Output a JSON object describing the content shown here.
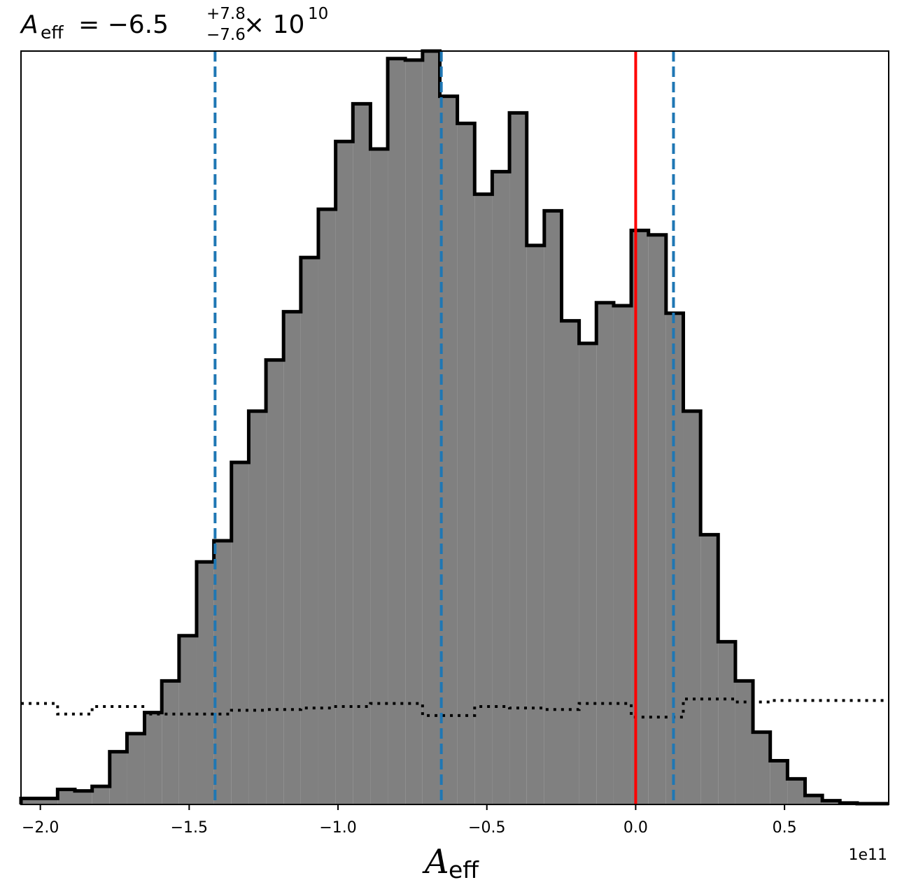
{
  "chart_data": {
    "type": "histogram",
    "title": {
      "symbol": "A",
      "symbol_subscript": "eff",
      "equals": "= −6.5",
      "upper_err": "+7.8",
      "lower_err": "−7.6",
      "times": "× 10",
      "exponent": "10"
    },
    "xlabel": {
      "symbol": "A",
      "subscript": "eff"
    },
    "x_offset_label": "1e11",
    "xlim": [
      -206500000000.0,
      85000000000.0
    ],
    "ylim": [
      0,
      1.0
    ],
    "xticks": [
      {
        "value": -200000000000.0,
        "label": "−2.0"
      },
      {
        "value": -150000000000.0,
        "label": "−1.5"
      },
      {
        "value": -100000000000.0,
        "label": "−1.0"
      },
      {
        "value": -50000000000.0,
        "label": "−0.5"
      },
      {
        "value": 0.0,
        "label": "0.0"
      },
      {
        "value": 50000000000.0,
        "label": "0.5"
      }
    ],
    "grid": false,
    "bin_edges": [
      -206500000000.0,
      -194200000000.0,
      -188400000000.0,
      -182600000000.0,
      -176700000000.0,
      -170900000000.0,
      -165000000000.0,
      -159200000000.0,
      -153400000000.0,
      -147500000000.0,
      -141700000000.0,
      -135800000000.0,
      -130000000000.0,
      -124200000000.0,
      -118300000000.0,
      -112500000000.0,
      -106600000000.0,
      -100800000000.0,
      -95000000000.0,
      -89100000000.0,
      -83300000000.0,
      -77400000000.0,
      -71600000000.0,
      -65800000000.0,
      -59900000000.0,
      -54100000000.0,
      -48200000000.0,
      -42400000000.0,
      -36600000000.0,
      -30700000000.0,
      -24900000000.0,
      -19000000000.0,
      -13200000000.0,
      -7400000000.0,
      -1500000000.0,
      4300000000.0,
      10200000000.0,
      16000000000.0,
      21800000000.0,
      27700000000.0,
      33500000000.0,
      39400000000.0,
      45200000000.0,
      51000000000.0,
      56900000000.0,
      62700000000.0,
      68600000000.0,
      74400000000.0,
      85000000000.0
    ],
    "series": [
      {
        "style": "filled-step",
        "color": "#808080",
        "edge_color": "#000000",
        "values": [
          0.008,
          0.02,
          0.018,
          0.024,
          0.07,
          0.094,
          0.122,
          0.164,
          0.224,
          0.322,
          0.35,
          0.454,
          0.522,
          0.59,
          0.654,
          0.726,
          0.79,
          0.88,
          0.93,
          0.87,
          0.99,
          0.988,
          1.0,
          0.94,
          0.904,
          0.81,
          0.84,
          0.918,
          0.742,
          0.788,
          0.642,
          0.612,
          0.666,
          0.662,
          0.762,
          0.756,
          0.652,
          0.522,
          0.358,
          0.216,
          0.164,
          0.096,
          0.058,
          0.034,
          0.012,
          0.005,
          0.002,
          0.001
        ]
      },
      {
        "style": "dotted-step",
        "color": "#000000",
        "values": [
          0.134,
          0.12,
          0.12,
          0.13,
          0.13,
          0.13,
          0.12,
          0.12,
          0.12,
          0.12,
          0.12,
          0.125,
          0.125,
          0.126,
          0.126,
          0.128,
          0.128,
          0.13,
          0.13,
          0.134,
          0.134,
          0.134,
          0.118,
          0.118,
          0.118,
          0.13,
          0.13,
          0.128,
          0.128,
          0.126,
          0.126,
          0.134,
          0.134,
          0.134,
          0.116,
          0.116,
          0.116,
          0.14,
          0.14,
          0.14,
          0.136,
          0.136,
          0.138,
          0.138,
          0.138,
          0.138,
          0.138,
          0.138
        ]
      }
    ],
    "vlines": [
      {
        "x": -141300000000.0,
        "color": "#1f77b4",
        "style": "dashed"
      },
      {
        "x": -65300000000.0,
        "color": "#1f77b4",
        "style": "dashed"
      },
      {
        "x": 12700000000.0,
        "color": "#1f77b4",
        "style": "dashed"
      },
      {
        "x": 0.0,
        "color": "#ff0000",
        "style": "solid"
      }
    ]
  }
}
